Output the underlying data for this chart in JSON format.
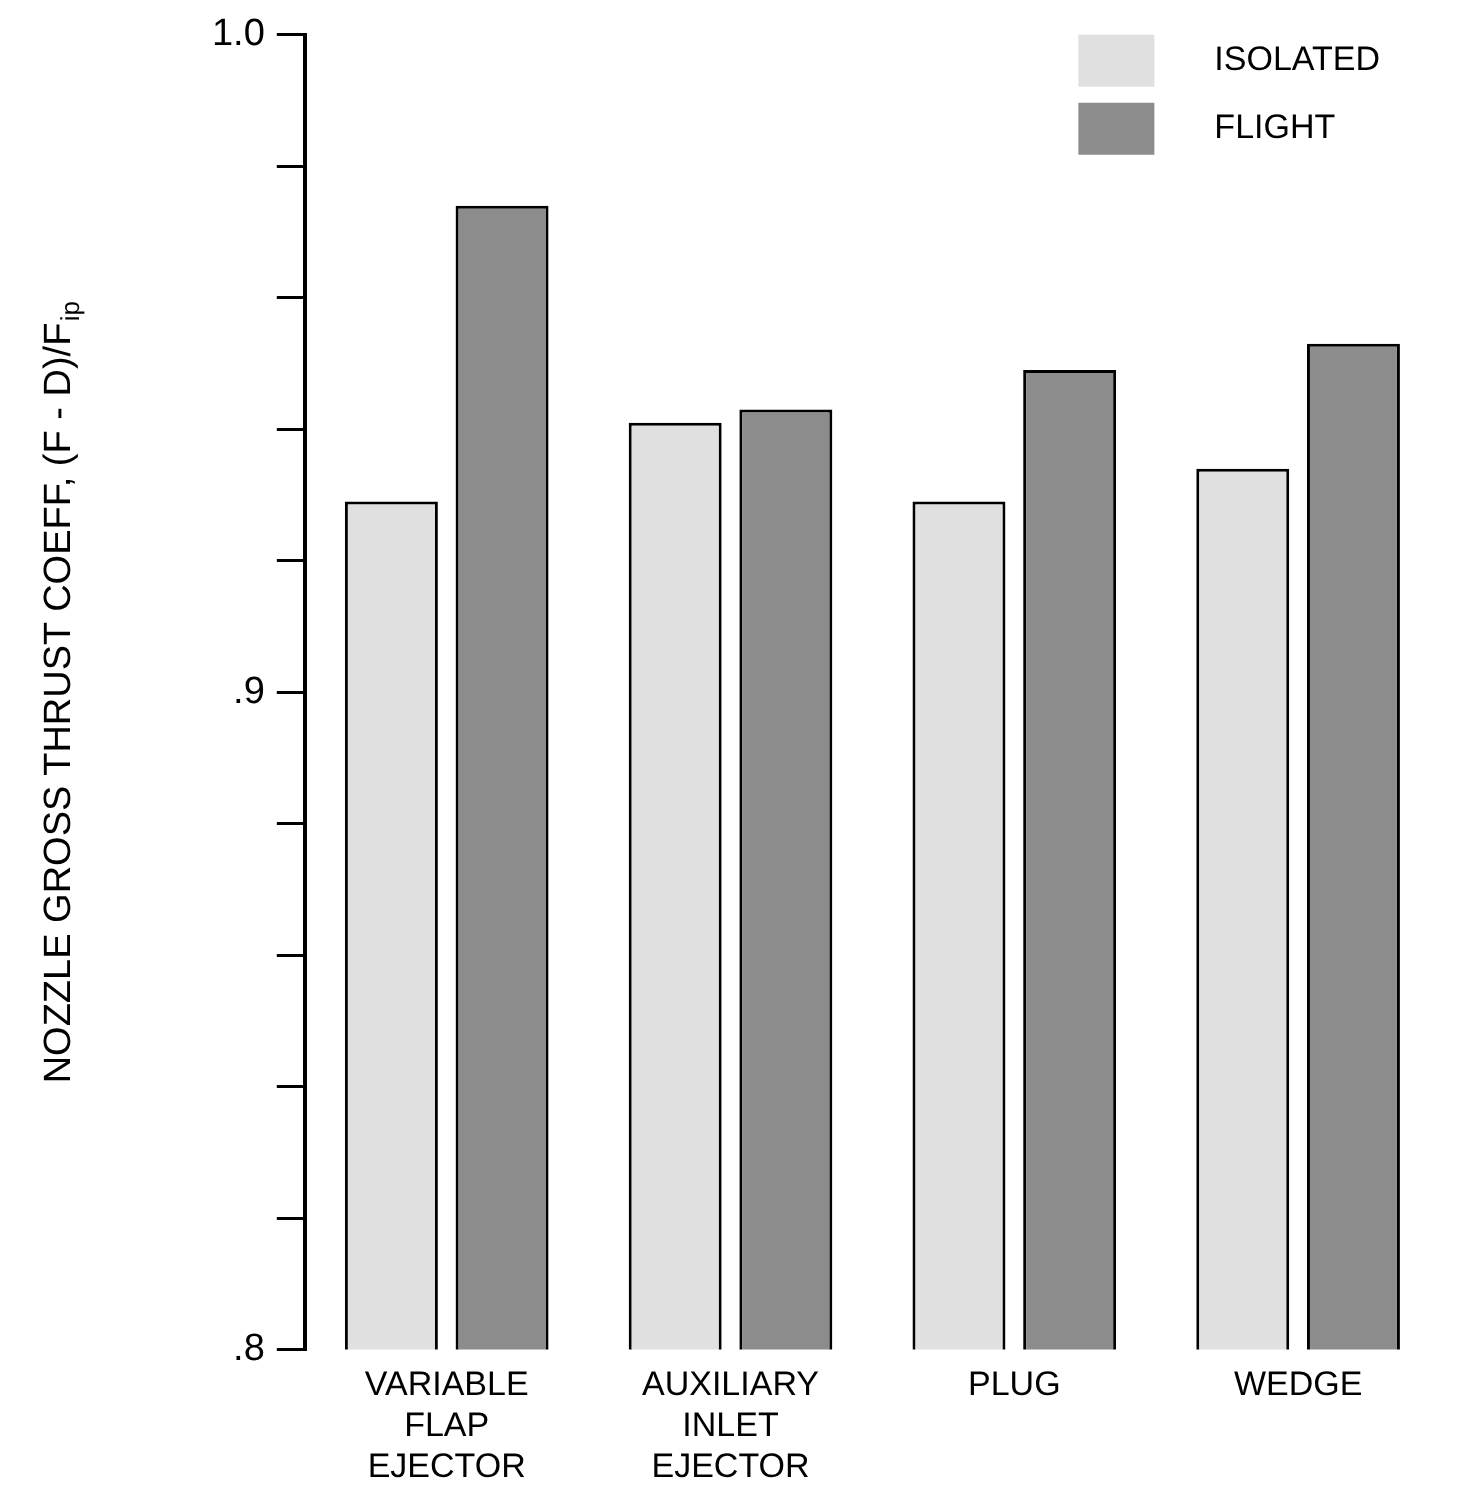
{
  "chart_data": {
    "type": "bar",
    "ylabel": "NOZZLE GROSS THRUST COEFF, (F - D)/F$_{ip}$",
    "categories": [
      "VARIABLE FLAP EJECTOR",
      "AUXILIARY INLET EJECTOR",
      "PLUG",
      "WEDGE"
    ],
    "series": [
      {
        "name": "ISOLATED",
        "color": "#e0e0e0",
        "values": [
          0.929,
          0.941,
          0.929,
          0.934
        ]
      },
      {
        "name": "FLIGHT",
        "color": "#8c8c8c",
        "values": [
          0.974,
          0.943,
          0.949,
          0.953
        ]
      }
    ],
    "ylim": [
      0.8,
      1.0
    ],
    "yticks": [
      {
        "value": 0.8,
        "label": ".8"
      },
      {
        "value": 0.82,
        "label": null
      },
      {
        "value": 0.84,
        "label": null
      },
      {
        "value": 0.86,
        "label": null
      },
      {
        "value": 0.88,
        "label": null
      },
      {
        "value": 0.9,
        "label": ".9"
      },
      {
        "value": 0.92,
        "label": null
      },
      {
        "value": 0.94,
        "label": null
      },
      {
        "value": 0.96,
        "label": null
      },
      {
        "value": 0.98,
        "label": null
      },
      {
        "value": 1.0,
        "label": "1.0"
      }
    ],
    "grid": false,
    "legend": "top right"
  }
}
